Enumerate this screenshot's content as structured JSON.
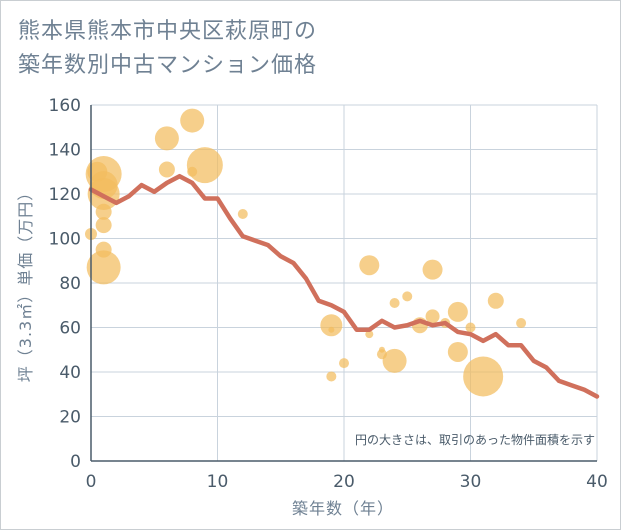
{
  "title_lines": [
    "熊本県熊本市中央区萩原町の",
    "築年数別中古マンション価格"
  ],
  "chart_data": {
    "type": "scatter",
    "xlabel": "築年数（年）",
    "ylabel": "坪（3.3㎡）単価（万円）",
    "xlim": [
      0,
      40
    ],
    "ylim": [
      0,
      160
    ],
    "xticks": [
      0,
      10,
      20,
      30,
      40
    ],
    "yticks": [
      0,
      20,
      40,
      60,
      80,
      100,
      120,
      140,
      160
    ],
    "grid": true,
    "annotation": "円の大きさは、取引のあった物件面積を示す",
    "colors": {
      "bubble": "#f2bc5e",
      "line": "#d0705c",
      "grid": "#c9d3dd",
      "axis": "#4a5b6a"
    },
    "bubbles": [
      {
        "x": 0,
        "y": 102,
        "s": 6
      },
      {
        "x": 0.5,
        "y": 130,
        "s": 10
      },
      {
        "x": 1,
        "y": 129,
        "s": 18
      },
      {
        "x": 1,
        "y": 124,
        "s": 14
      },
      {
        "x": 1,
        "y": 120,
        "s": 16
      },
      {
        "x": 1,
        "y": 112,
        "s": 8
      },
      {
        "x": 1,
        "y": 106,
        "s": 8
      },
      {
        "x": 1,
        "y": 95,
        "s": 8
      },
      {
        "x": 1,
        "y": 87,
        "s": 17
      },
      {
        "x": 6,
        "y": 145,
        "s": 12
      },
      {
        "x": 6,
        "y": 131,
        "s": 8
      },
      {
        "x": 8,
        "y": 153,
        "s": 12
      },
      {
        "x": 8,
        "y": 130,
        "s": 5
      },
      {
        "x": 9,
        "y": 133,
        "s": 18
      },
      {
        "x": 12,
        "y": 111,
        "s": 5
      },
      {
        "x": 19,
        "y": 61,
        "s": 11
      },
      {
        "x": 19,
        "y": 59,
        "s": 3
      },
      {
        "x": 19,
        "y": 38,
        "s": 5
      },
      {
        "x": 20,
        "y": 44,
        "s": 5
      },
      {
        "x": 22,
        "y": 88,
        "s": 10
      },
      {
        "x": 22,
        "y": 57,
        "s": 4
      },
      {
        "x": 23,
        "y": 50,
        "s": 3
      },
      {
        "x": 23,
        "y": 48,
        "s": 5
      },
      {
        "x": 24,
        "y": 71,
        "s": 5
      },
      {
        "x": 24,
        "y": 45,
        "s": 12
      },
      {
        "x": 25,
        "y": 74,
        "s": 5
      },
      {
        "x": 26,
        "y": 61,
        "s": 8
      },
      {
        "x": 27,
        "y": 86,
        "s": 10
      },
      {
        "x": 27,
        "y": 65,
        "s": 7
      },
      {
        "x": 28,
        "y": 62,
        "s": 5
      },
      {
        "x": 29,
        "y": 67,
        "s": 10
      },
      {
        "x": 29,
        "y": 49,
        "s": 10
      },
      {
        "x": 30,
        "y": 60,
        "s": 5
      },
      {
        "x": 31,
        "y": 38,
        "s": 20
      },
      {
        "x": 32,
        "y": 72,
        "s": 8
      },
      {
        "x": 34,
        "y": 62,
        "s": 5
      }
    ],
    "trend": {
      "x": [
        0,
        1,
        2,
        3,
        4,
        5,
        6,
        7,
        8,
        9,
        10,
        11,
        12,
        13,
        14,
        15,
        16,
        17,
        18,
        19,
        20,
        21,
        22,
        23,
        24,
        25,
        26,
        27,
        28,
        29,
        30,
        31,
        32,
        33,
        34,
        35,
        36,
        37,
        38,
        39,
        40
      ],
      "y": [
        122,
        119,
        116,
        119,
        124,
        121,
        125,
        128,
        125,
        118,
        118,
        109,
        101,
        99,
        97,
        92,
        89,
        82,
        72,
        70,
        67,
        59,
        59,
        63,
        60,
        61,
        63,
        61,
        62,
        58,
        57,
        54,
        57,
        52,
        52,
        45,
        42,
        36,
        34,
        32,
        29
      ]
    }
  }
}
